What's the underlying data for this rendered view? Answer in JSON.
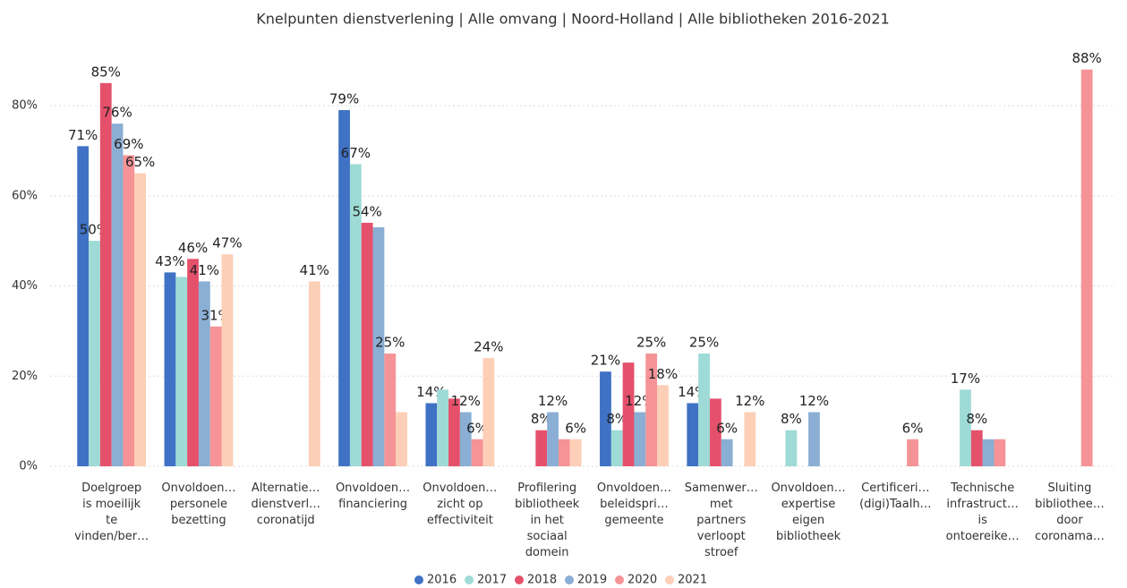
{
  "chart_data": {
    "type": "bar",
    "title": "Knelpunten dienstverlening | Alle omvang | Noord-Holland | Alle bibliotheken 2016-2021",
    "categories": [
      "Doelgroep is moeilijk te vinden/ber…",
      "Onvoldoen… personele bezetting",
      "Alternatie… dienstverl… coronatijd",
      "Onvoldoen… financiering",
      "Onvoldoen… zicht op effectiviteit",
      "Profilering bibliotheek in het sociaal domein",
      "Onvoldoen… beleidspri… gemeente",
      "Samenwer… met partners verloopt stroef",
      "Onvoldoen… expertise eigen bibliotheek",
      "Certificeri… (digi)Taalh…",
      "Technische infrastruct… is ontoereike…",
      "Sluiting bibliothee… door coronama…"
    ],
    "series": [
      {
        "name": "2016",
        "color": "#3f72c4",
        "values": [
          71,
          43,
          null,
          79,
          14,
          null,
          21,
          14,
          null,
          null,
          null,
          null
        ],
        "value_labels": [
          "71%",
          "43%",
          null,
          "79%",
          "14%",
          null,
          "21%",
          "14%",
          null,
          null,
          null,
          null
        ]
      },
      {
        "name": "2017",
        "color": "#9edbd6",
        "values": [
          50,
          42,
          null,
          67,
          17,
          null,
          8,
          25,
          8,
          null,
          17,
          null
        ],
        "value_labels": [
          "50%",
          null,
          null,
          "67%",
          null,
          null,
          "8%",
          "25%",
          "8%",
          null,
          "17%",
          null
        ]
      },
      {
        "name": "2018",
        "color": "#e5506b",
        "values": [
          85,
          46,
          null,
          54,
          15,
          8,
          23,
          15,
          null,
          null,
          8,
          null
        ],
        "value_labels": [
          "85%",
          "46%",
          null,
          "54%",
          null,
          "8%",
          null,
          null,
          null,
          null,
          "8%",
          null
        ]
      },
      {
        "name": "2019",
        "color": "#8aaed4",
        "values": [
          76,
          41,
          null,
          53,
          12,
          12,
          12,
          6,
          12,
          null,
          6,
          null
        ],
        "value_labels": [
          "76%",
          "41%",
          null,
          null,
          "12%",
          "12%",
          "12%",
          "6%",
          "12%",
          null,
          null,
          null
        ]
      },
      {
        "name": "2020",
        "color": "#f59396",
        "values": [
          69,
          31,
          null,
          25,
          6,
          6,
          25,
          null,
          null,
          6,
          6,
          88
        ],
        "value_labels": [
          "69%",
          "31%",
          null,
          "25%",
          "6%",
          null,
          "25%",
          null,
          null,
          "6%",
          null,
          "88%"
        ]
      },
      {
        "name": "2021",
        "color": "#fccfb6",
        "values": [
          65,
          47,
          41,
          12,
          24,
          6,
          18,
          12,
          null,
          null,
          null,
          null
        ],
        "value_labels": [
          "65%",
          "47%",
          "41%",
          null,
          "24%",
          "6%",
          "18%",
          "12%",
          null,
          null,
          null,
          null
        ]
      }
    ],
    "ylim": [
      0,
      88
    ],
    "yticks": [
      {
        "value": 0,
        "label": "0%"
      },
      {
        "value": 20,
        "label": "20%"
      },
      {
        "value": 40,
        "label": "40%"
      },
      {
        "value": 60,
        "label": "60%"
      },
      {
        "value": 80,
        "label": "80%"
      }
    ],
    "grid": true,
    "legend": "bottom"
  }
}
